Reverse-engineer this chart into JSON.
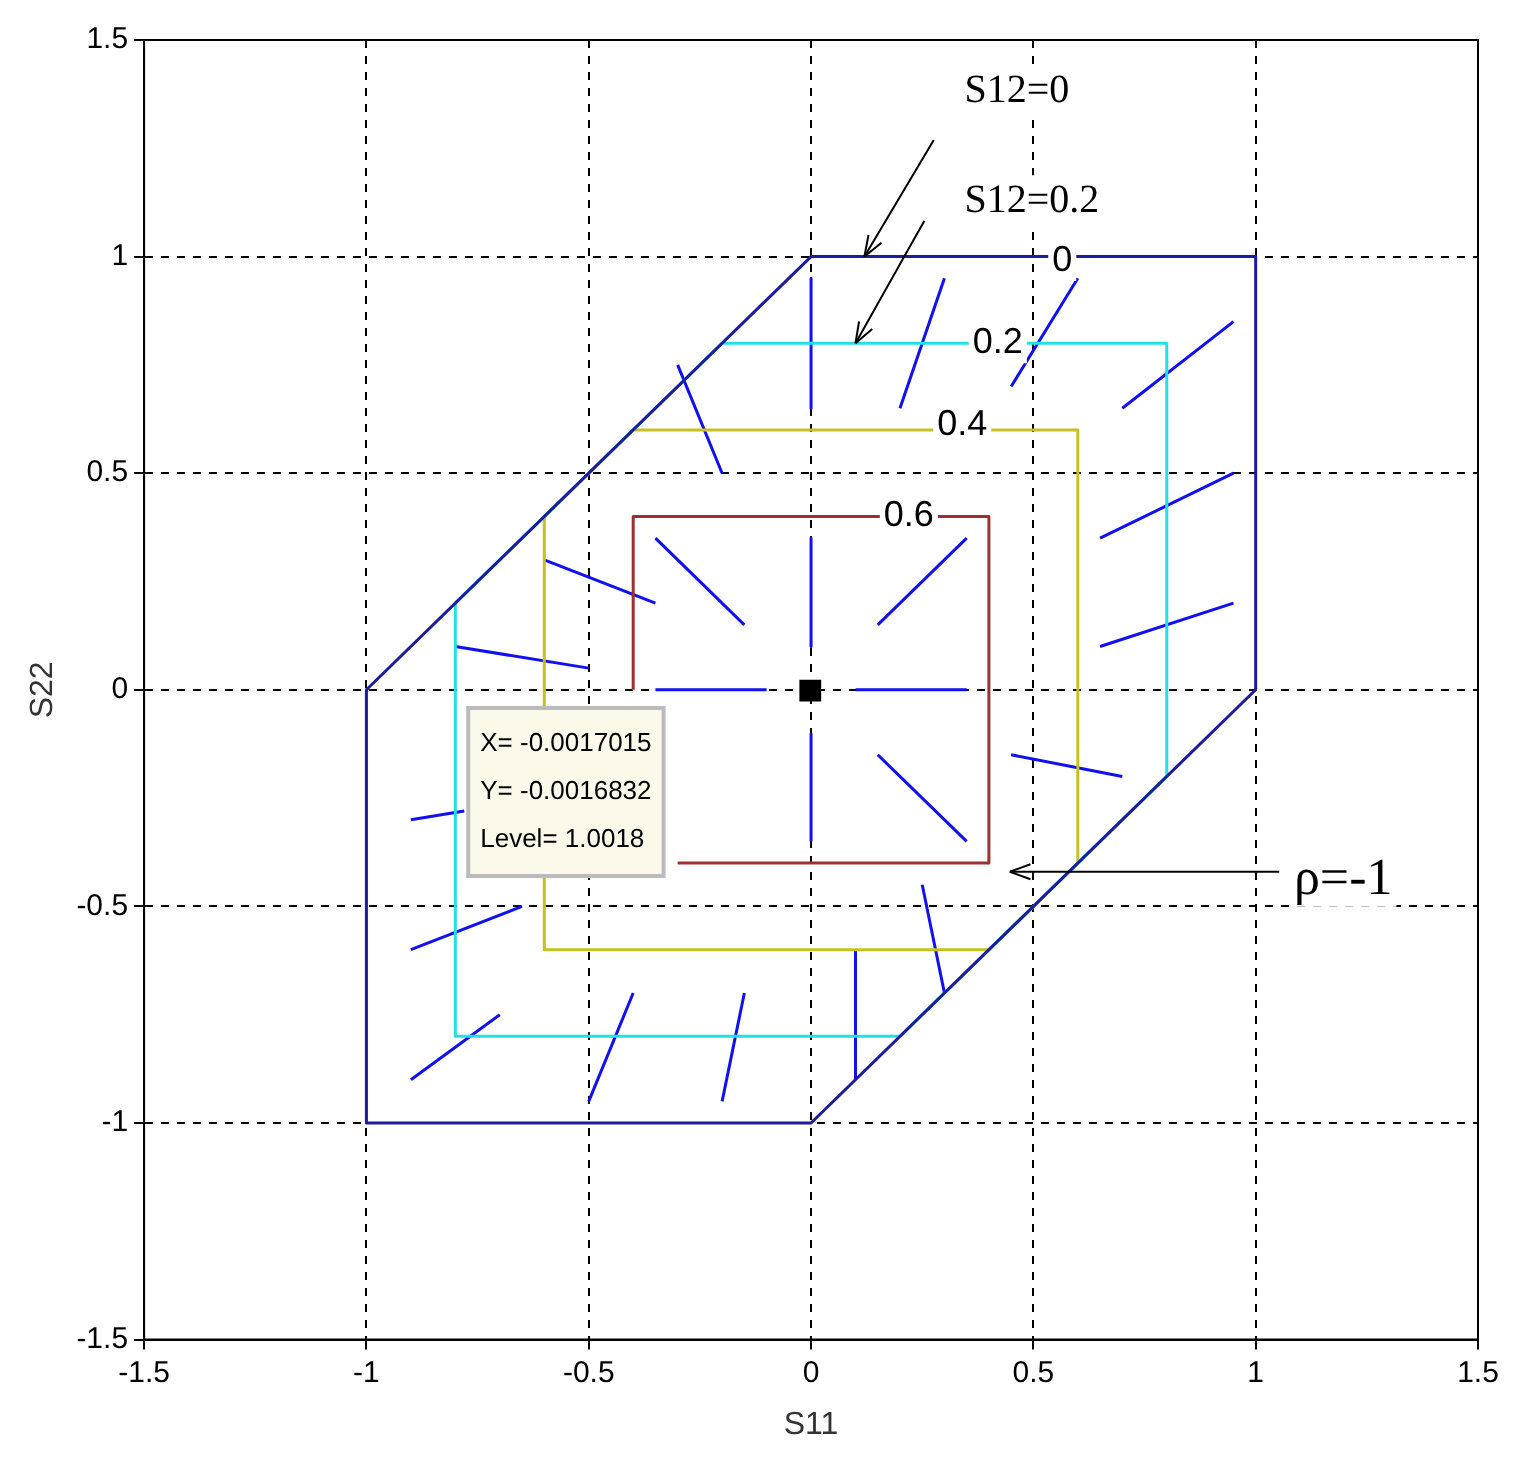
{
  "chart_data": {
    "type": "line",
    "xlabel": "S11",
    "ylabel": "S22",
    "xlim": [
      -1.5,
      1.5
    ],
    "ylim": [
      -1.5,
      1.5
    ],
    "xticks": [
      -1.5,
      -1,
      -0.5,
      0,
      0.5,
      1,
      1.5
    ],
    "yticks": [
      -1.5,
      -1,
      -0.5,
      0,
      0.5,
      1,
      1.5
    ],
    "grid": true,
    "legend": false,
    "line_style": "solid",
    "marker": "none",
    "series": [
      {
        "color": "#1c1c9c",
        "x": [
          -1,
          0,
          1,
          1
        ],
        "values": [
          0,
          1,
          1,
          0
        ]
      },
      {
        "color": "#1c1c9c",
        "x": [
          -1,
          -1,
          0,
          1
        ],
        "values": [
          0,
          -1,
          -1,
          0
        ]
      },
      {
        "color": "#22e0e8",
        "x": [
          -0.8,
          -0.2,
          0.8,
          0.8
        ],
        "values": [
          0.2,
          0.8,
          0.8,
          -0.2
        ]
      },
      {
        "color": "#22e0e8",
        "x": [
          -0.8,
          -0.8,
          0.2,
          0.8
        ],
        "values": [
          0.2,
          -0.8,
          -0.8,
          -0.2
        ]
      },
      {
        "color": "#c8c020",
        "x": [
          -0.6,
          -0.4,
          0.6,
          0.6
        ],
        "values": [
          0.4,
          0.6,
          0.6,
          -0.4
        ]
      },
      {
        "color": "#c8c020",
        "x": [
          -0.6,
          -0.6,
          0.4,
          0.6
        ],
        "values": [
          0.4,
          -0.6,
          -0.6,
          -0.4
        ]
      },
      {
        "color": "#a03030",
        "x": [
          -0.4,
          -0.4,
          0.4,
          0.4
        ],
        "values": [
          0,
          0.4,
          0.4,
          -0.4
        ]
      },
      {
        "color": "#a03030",
        "x": [
          -0.3,
          0.4
        ],
        "values": [
          -0.4,
          -0.4
        ]
      },
      {
        "color": "#1010f0",
        "x": [
          -0.9,
          -0.78
        ],
        "values": [
          -0.3,
          -0.28
        ]
      },
      {
        "color": "#1010f0",
        "x": [
          0.1,
          0.1
        ],
        "values": [
          -0.9,
          -0.6
        ]
      },
      {
        "color": "#1010f0",
        "x": [
          0,
          0
        ],
        "values": [
          0.95,
          0.65
        ]
      },
      {
        "color": "#1010f0",
        "x": [
          0,
          0
        ],
        "values": [
          0.35,
          0.1
        ]
      },
      {
        "color": "#1010f0",
        "x": [
          0,
          0
        ],
        "values": [
          -0.35,
          -0.1
        ]
      },
      {
        "color": "#1010f0",
        "x": [
          -0.9,
          -0.65
        ],
        "values": [
          -0.6,
          -0.5
        ]
      },
      {
        "color": "#1010f0",
        "x": [
          -0.9,
          -0.7
        ],
        "values": [
          -0.9,
          -0.75
        ]
      },
      {
        "color": "#1010f0",
        "x": [
          -0.5,
          -0.4
        ],
        "values": [
          -0.95,
          -0.7
        ]
      },
      {
        "color": "#1010f0",
        "x": [
          -0.2,
          -0.15
        ],
        "values": [
          -0.95,
          -0.7
        ]
      },
      {
        "color": "#1010f0",
        "x": [
          0.3,
          0.25
        ],
        "values": [
          -0.7,
          -0.45
        ]
      },
      {
        "color": "#1010f0",
        "x": [
          0.7,
          0.45
        ],
        "values": [
          -0.2,
          -0.15
        ]
      },
      {
        "color": "#1010f0",
        "x": [
          0.95,
          0.65
        ],
        "values": [
          0.2,
          0.1
        ]
      },
      {
        "color": "#1010f0",
        "x": [
          0.95,
          0.65
        ],
        "values": [
          0.5,
          0.35
        ]
      },
      {
        "color": "#1010f0",
        "x": [
          0.95,
          0.7
        ],
        "values": [
          0.85,
          0.65
        ]
      },
      {
        "color": "#1010f0",
        "x": [
          0.6,
          0.45
        ],
        "values": [
          0.95,
          0.7
        ]
      },
      {
        "color": "#1010f0",
        "x": [
          0.3,
          0.2
        ],
        "values": [
          0.95,
          0.65
        ]
      },
      {
        "color": "#1010f0",
        "x": [
          -0.3,
          -0.2
        ],
        "values": [
          0.75,
          0.5
        ]
      },
      {
        "color": "#1010f0",
        "x": [
          -0.6,
          -0.35
        ],
        "values": [
          0.3,
          0.2
        ]
      },
      {
        "color": "#1010f0",
        "x": [
          -0.8,
          -0.5
        ],
        "values": [
          0.1,
          0.05
        ]
      },
      {
        "color": "#1010f0",
        "x": [
          -0.35,
          -0.15
        ],
        "values": [
          0.35,
          0.15
        ]
      },
      {
        "color": "#1010f0",
        "x": [
          0.35,
          0.15
        ],
        "values": [
          0.35,
          0.15
        ]
      },
      {
        "color": "#1010f0",
        "x": [
          0.35,
          0.15
        ],
        "values": [
          -0.35,
          -0.15
        ]
      },
      {
        "color": "#1010f0",
        "x": [
          0.35,
          0.1
        ],
        "values": [
          0,
          0
        ]
      },
      {
        "color": "#1010f0",
        "x": [
          -0.35,
          -0.1
        ],
        "values": [
          0,
          0
        ]
      },
      {
        "type": "scatter",
        "marker": "square",
        "color": "#000000",
        "x": [
          -0.0017015
        ],
        "values": [
          -0.0016832
        ]
      }
    ],
    "annotations": [
      {
        "text": "0",
        "x": 0.565,
        "y": 0.99
      },
      {
        "text": "0.2",
        "x": 0.42,
        "y": 0.8
      },
      {
        "text": "0.4",
        "x": 0.34,
        "y": 0.61
      },
      {
        "text": "0.6",
        "x": 0.22,
        "y": 0.4
      },
      {
        "text": "S12=0",
        "x": 0.12,
        "y": 1
      },
      {
        "text": "S12=0.2",
        "x": 0.1,
        "y": 0.8
      },
      "ρ=-1",
      "X= -0.0017015\nY= -0.0016832\nLevel= 1.0018"
    ]
  }
}
